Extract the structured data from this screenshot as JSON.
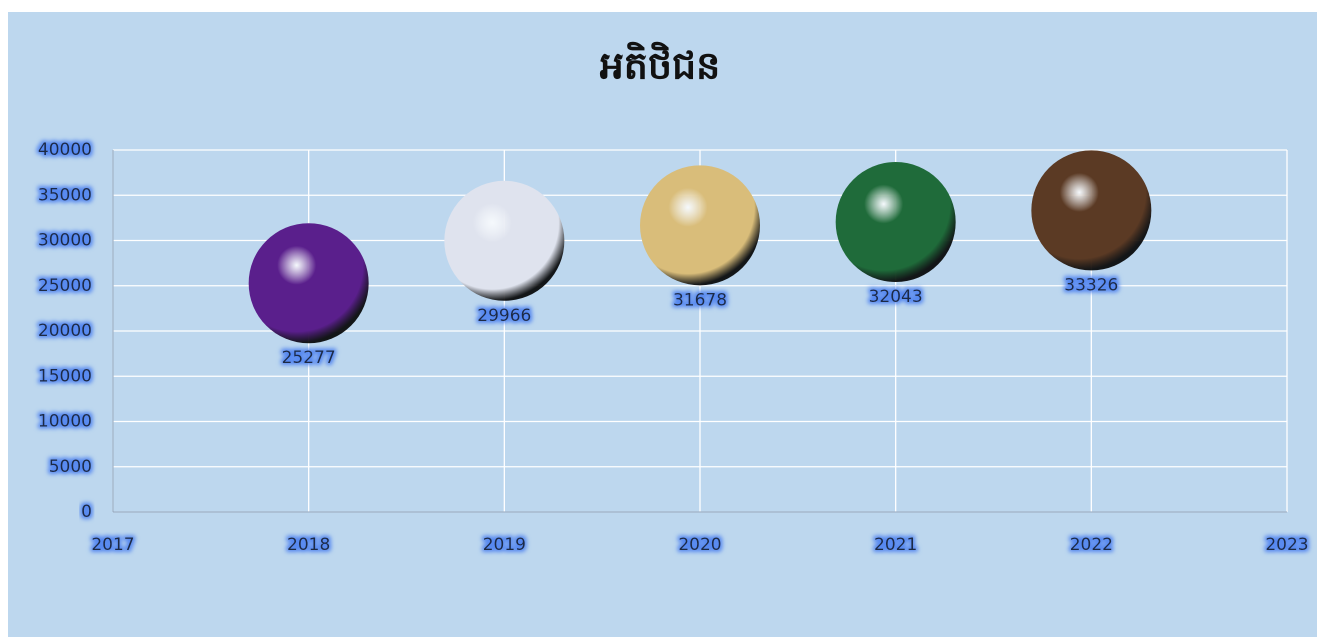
{
  "chart_data": {
    "type": "bubble",
    "title": "អតិថិជន",
    "x": [
      2018,
      2019,
      2020,
      2021,
      2022
    ],
    "values": [
      25277,
      29966,
      31678,
      32043,
      33326
    ],
    "colors": [
      "#5a1f8c",
      "#dfe3ee",
      "#d9bd7a",
      "#1f6b3a",
      "#5b3a24"
    ],
    "xlim": [
      2017,
      2023
    ],
    "xticks": [
      2017,
      2018,
      2019,
      2020,
      2021,
      2022,
      2023
    ],
    "ylim": [
      0,
      40000
    ],
    "yticks": [
      0,
      5000,
      10000,
      15000,
      20000,
      25000,
      30000,
      35000,
      40000
    ],
    "grid": true
  }
}
